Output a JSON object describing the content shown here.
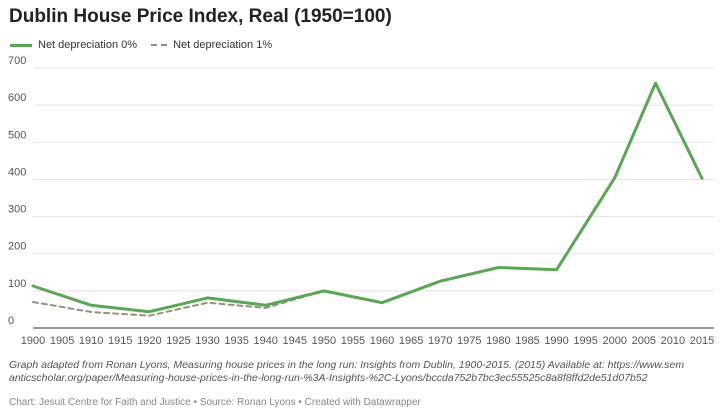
{
  "chart_data": {
    "type": "line",
    "title": "Dublin House Price Index, Real (1950=100)",
    "xlabel": "",
    "ylabel": "",
    "xlim": [
      1900,
      2015
    ],
    "ylim": [
      0,
      700
    ],
    "xticks": [
      1900,
      1905,
      1910,
      1915,
      1920,
      1925,
      1930,
      1935,
      1940,
      1945,
      1950,
      1955,
      1960,
      1965,
      1970,
      1975,
      1980,
      1985,
      1990,
      1995,
      2000,
      2005,
      2010,
      2015
    ],
    "yticks": [
      0,
      100,
      200,
      300,
      400,
      500,
      600,
      700
    ],
    "grid": true,
    "legend_position": "top-left",
    "series": [
      {
        "name": "Net depreciation 0%",
        "color": "#5aa654",
        "style": "solid",
        "points": [
          [
            1900,
            113
          ],
          [
            1910,
            61
          ],
          [
            1920,
            44
          ],
          [
            1930,
            81
          ],
          [
            1940,
            61
          ],
          [
            1950,
            100
          ],
          [
            1960,
            68
          ],
          [
            1970,
            126
          ],
          [
            1980,
            163
          ],
          [
            1990,
            157
          ],
          [
            2000,
            404
          ],
          [
            2007,
            659
          ],
          [
            2015,
            403
          ]
        ]
      },
      {
        "name": "Net depreciation 1%",
        "color": "#94917c",
        "style": "dashed",
        "points": [
          [
            1900,
            70
          ],
          [
            1910,
            43
          ],
          [
            1920,
            33
          ],
          [
            1930,
            68
          ],
          [
            1940,
            54
          ],
          [
            1950,
            100
          ],
          [
            1960,
            68
          ],
          [
            1970,
            126
          ],
          [
            1980,
            163
          ],
          [
            1990,
            157
          ],
          [
            2000,
            404
          ],
          [
            2007,
            659
          ],
          [
            2015,
            403
          ]
        ]
      }
    ]
  },
  "note": "Graph adapted from Ronan Lyons, Measuring house prices in the long run: Insights from Dublin, 1900-2015. (2015) Available at: https://www.semanticscholar.org/paper/Measuring-house-prices-in-the-long-run-%3A-Insights-%2C-Lyons/bccda752b7bc3ec55525c8a8f8ffd2de51d07b52",
  "footer": "Chart: Jesuit Centre for Faith and Justice • Source: Ronan Lyons • Created with Datawrapper"
}
